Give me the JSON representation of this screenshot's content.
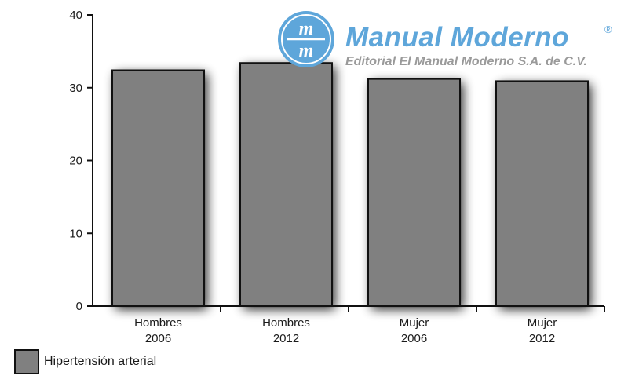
{
  "chart_data": {
    "type": "bar",
    "categories": [
      [
        "Hombres",
        "2006"
      ],
      [
        "Hombres",
        "2012"
      ],
      [
        "Mujer",
        "2006"
      ],
      [
        "Mujer",
        "2012"
      ]
    ],
    "series": [
      {
        "name": "Hipertensión arterial",
        "values": [
          32.4,
          33.4,
          31.2,
          30.9
        ]
      }
    ],
    "yticks": [
      0,
      10,
      20,
      30,
      40
    ],
    "ylim": [
      0,
      40
    ],
    "grid": false,
    "legend": "bottom-left",
    "colors": {
      "bar": "#808080",
      "bar_border": "#111111",
      "axis": "#111111"
    }
  },
  "legend": {
    "label": "Hipertensión arterial",
    "color": "#808080"
  },
  "watermark": {
    "logo_text": "mm",
    "title": "Manual Moderno",
    "registered": "®",
    "subtitle": "Editorial El Manual Moderno S.A. de C.V.",
    "color": "#5ea6da"
  }
}
